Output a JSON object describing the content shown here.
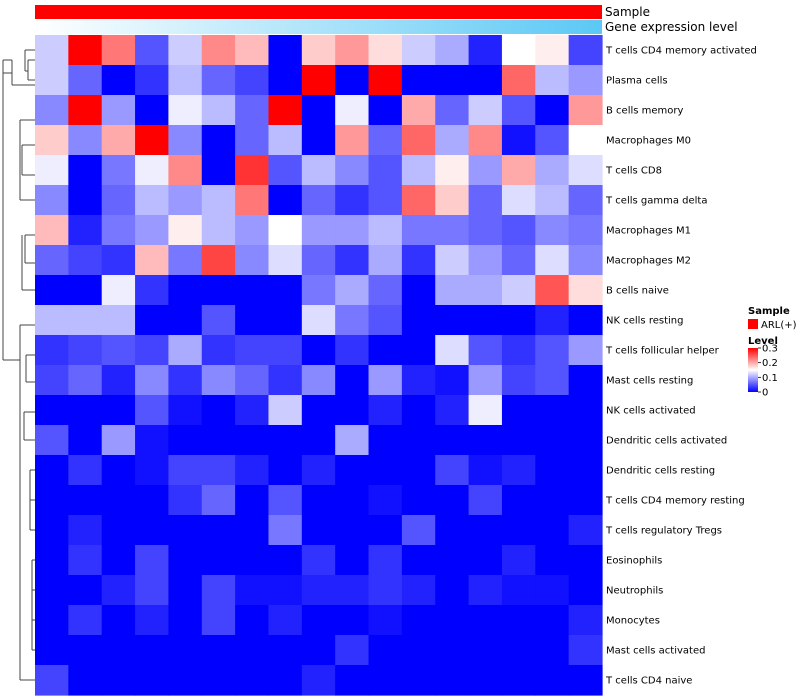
{
  "chart_data": {
    "type": "heatmap",
    "annotation_tracks": [
      {
        "label": "Sample",
        "legend_entry": "ARL(+)",
        "color": "#ff0000"
      },
      {
        "label": "Gene expression level"
      }
    ],
    "gene_expression_gradient": [
      "#ffffff",
      "#5bc8f5"
    ],
    "rows": [
      "T cells CD4 memory activated",
      "Plasma cells",
      "B cells memory",
      "Macrophages M0",
      "T cells CD8",
      "T cells gamma delta",
      "Macrophages M1",
      "Macrophages M2",
      "B cells naive",
      "NK cells resting",
      "T cells follicular helper",
      "Mast cells resting",
      "NK cells activated",
      "Dendritic cells activated",
      "Dendritic cells resting",
      "T cells CD4 memory resting",
      "T cells regulatory  Tregs",
      "Eosinophils",
      "Neutrophils",
      "Monocytes",
      "Mast cells activated",
      "T cells CD4 naive"
    ],
    "columns": 17,
    "values": [
      [
        0.12,
        0.3,
        0.23,
        0.05,
        0.12,
        0.22,
        0.19,
        0.0,
        0.18,
        0.21,
        0.17,
        0.12,
        0.1,
        0.02,
        0.15,
        0.16,
        0.04
      ],
      [
        0.12,
        0.06,
        0.0,
        0.03,
        0.11,
        0.06,
        0.04,
        0.0,
        0.3,
        0.0,
        0.3,
        0.0,
        0.0,
        0.0,
        0.24,
        0.11,
        0.09
      ],
      [
        0.08,
        0.3,
        0.09,
        0.0,
        0.14,
        0.11,
        0.06,
        0.3,
        0.0,
        0.14,
        0.0,
        0.2,
        0.06,
        0.12,
        0.05,
        0.0,
        0.21
      ],
      [
        0.18,
        0.08,
        0.2,
        0.3,
        0.08,
        0.0,
        0.06,
        0.11,
        0.0,
        0.21,
        0.06,
        0.24,
        0.1,
        0.22,
        0.01,
        0.05,
        0.15
      ],
      [
        0.14,
        0.0,
        0.07,
        0.14,
        0.22,
        0.0,
        0.27,
        0.05,
        0.11,
        0.08,
        0.05,
        0.11,
        0.16,
        0.09,
        0.2,
        0.1,
        0.13
      ],
      [
        0.08,
        0.0,
        0.06,
        0.11,
        0.09,
        0.11,
        0.23,
        0.0,
        0.06,
        0.03,
        0.05,
        0.24,
        0.18,
        0.06,
        0.13,
        0.11,
        0.06
      ],
      [
        0.19,
        0.02,
        0.07,
        0.09,
        0.16,
        0.11,
        0.09,
        0.15,
        0.09,
        0.09,
        0.11,
        0.07,
        0.07,
        0.06,
        0.05,
        0.08,
        0.07
      ],
      [
        0.06,
        0.04,
        0.03,
        0.19,
        0.07,
        0.26,
        0.08,
        0.13,
        0.06,
        0.03,
        0.1,
        0.03,
        0.12,
        0.09,
        0.06,
        0.13,
        0.08
      ],
      [
        0.0,
        0.0,
        0.14,
        0.03,
        0.0,
        0.0,
        0.0,
        0.0,
        0.07,
        0.1,
        0.06,
        0.0,
        0.1,
        0.1,
        0.12,
        0.25,
        0.17
      ],
      [
        0.11,
        0.11,
        0.11,
        0.0,
        0.0,
        0.05,
        0.0,
        0.0,
        0.13,
        0.07,
        0.05,
        0.0,
        0.0,
        0.0,
        0.0,
        0.02,
        0.0
      ],
      [
        0.03,
        0.04,
        0.05,
        0.04,
        0.1,
        0.03,
        0.04,
        0.04,
        0.0,
        0.03,
        0.0,
        0.0,
        0.13,
        0.05,
        0.03,
        0.05,
        0.09
      ],
      [
        0.04,
        0.06,
        0.02,
        0.08,
        0.03,
        0.08,
        0.06,
        0.03,
        0.08,
        0.0,
        0.09,
        0.02,
        0.01,
        0.09,
        0.04,
        0.05,
        0.0
      ],
      [
        0.0,
        0.0,
        0.0,
        0.05,
        0.01,
        0.0,
        0.02,
        0.12,
        0.0,
        0.0,
        0.02,
        0.0,
        0.02,
        0.14,
        0.0,
        0.0,
        0.0
      ],
      [
        0.05,
        0.0,
        0.09,
        0.01,
        0.0,
        0.0,
        0.0,
        0.0,
        0.0,
        0.1,
        0.0,
        0.0,
        0.0,
        0.0,
        0.0,
        0.0,
        0.0
      ],
      [
        0.0,
        0.03,
        0.0,
        0.01,
        0.04,
        0.04,
        0.02,
        0.0,
        0.02,
        0.0,
        0.0,
        0.0,
        0.04,
        0.01,
        0.02,
        0.0,
        0.0
      ],
      [
        0.0,
        0.0,
        0.0,
        0.0,
        0.03,
        0.06,
        0.0,
        0.05,
        0.0,
        0.0,
        0.01,
        0.0,
        0.0,
        0.04,
        0.0,
        0.0,
        0.0
      ],
      [
        0.0,
        0.02,
        0.0,
        0.0,
        0.0,
        0.0,
        0.0,
        0.07,
        0.0,
        0.0,
        0.0,
        0.05,
        0.0,
        0.0,
        0.0,
        0.0,
        0.02
      ],
      [
        0.0,
        0.03,
        0.0,
        0.04,
        0.0,
        0.0,
        0.0,
        0.0,
        0.03,
        0.0,
        0.03,
        0.0,
        0.0,
        0.0,
        0.02,
        0.0,
        0.0
      ],
      [
        0.0,
        0.0,
        0.02,
        0.04,
        0.0,
        0.04,
        0.01,
        0.01,
        0.02,
        0.02,
        0.03,
        0.02,
        0.0,
        0.02,
        0.01,
        0.01,
        0.0
      ],
      [
        0.0,
        0.03,
        0.0,
        0.02,
        0.0,
        0.04,
        0.0,
        0.02,
        0.0,
        0.0,
        0.01,
        0.0,
        0.0,
        0.0,
        0.0,
        0.0,
        0.02
      ],
      [
        0.0,
        0.0,
        0.0,
        0.0,
        0.0,
        0.0,
        0.0,
        0.0,
        0.0,
        0.03,
        0.0,
        0.0,
        0.0,
        0.0,
        0.0,
        0.0,
        0.03
      ],
      [
        0.04,
        0.0,
        0.0,
        0.0,
        0.0,
        0.0,
        0.0,
        0.0,
        0.02,
        0.0,
        0.0,
        0.0,
        0.0,
        0.0,
        0.0,
        0.0,
        0.0
      ]
    ],
    "color_scale": {
      "min": 0,
      "max": 0.3,
      "low": "#0000ff",
      "mid": "#ffffff",
      "high": "#ff0000"
    },
    "legend": {
      "sample_title": "Sample",
      "sample_entry": "ARL(+)",
      "level_title": "Level",
      "level_ticks": [
        "0.3",
        "0.2",
        "0.1",
        "0"
      ],
      "level_tick_values": [
        0.3,
        0.2,
        0.1,
        0
      ],
      "placement": "right"
    },
    "row_dendrogram": true,
    "xlabel": "",
    "ylabel": ""
  }
}
